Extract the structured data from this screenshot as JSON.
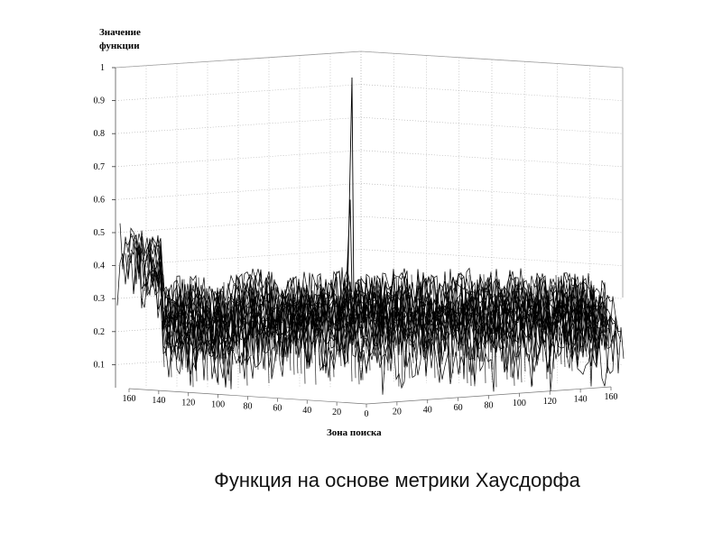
{
  "chart_data": {
    "type": "surface",
    "title": "Функция на основе метрики Хаусдорфа",
    "zlabel": "Значение функции",
    "xlabel": "Зона поиска",
    "zlim": [
      0,
      1
    ],
    "zticks": [
      0.1,
      0.2,
      0.3,
      0.4,
      0.5,
      0.6,
      0.7,
      0.8,
      0.9,
      1
    ],
    "xlim": [
      0,
      160
    ],
    "xticks": [
      0,
      20,
      40,
      60,
      80,
      100,
      120,
      140,
      160
    ],
    "ylim": [
      0,
      160
    ],
    "yticks": [
      20,
      40,
      60,
      80,
      100,
      120,
      140,
      160
    ],
    "grid": true
  }
}
